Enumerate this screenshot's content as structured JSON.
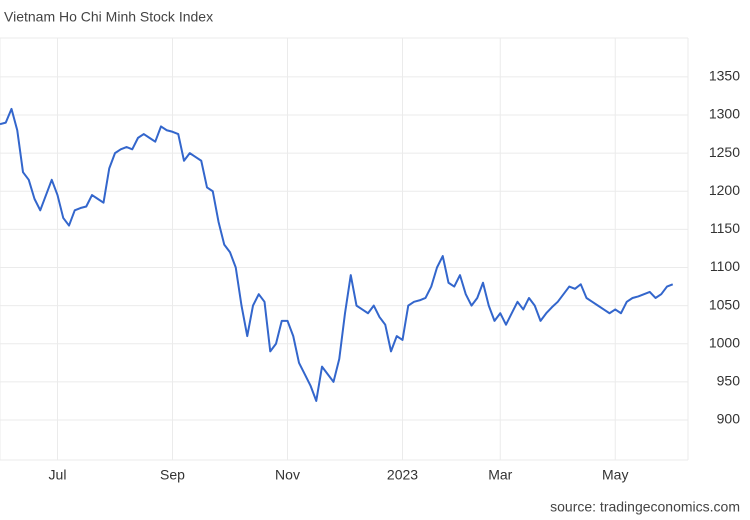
{
  "chart_data": {
    "type": "line",
    "title": "Vietnam Ho Chi Minh Stock Index",
    "source": "source: tradingeconomics.com",
    "categories": [
      null,
      null,
      null,
      null,
      null,
      null,
      null,
      null,
      null,
      null,
      "Jul",
      null,
      null,
      null,
      null,
      null,
      null,
      null,
      null,
      null,
      null,
      null,
      null,
      null,
      null,
      null,
      null,
      null,
      null,
      null,
      "Sep",
      null,
      null,
      null,
      null,
      null,
      null,
      null,
      null,
      null,
      null,
      null,
      null,
      null,
      null,
      null,
      null,
      null,
      null,
      null,
      "Nov",
      null,
      null,
      null,
      null,
      null,
      null,
      null,
      null,
      null,
      null,
      null,
      null,
      null,
      null,
      null,
      null,
      null,
      null,
      null,
      "2023",
      null,
      null,
      null,
      null,
      null,
      null,
      null,
      null,
      null,
      null,
      null,
      null,
      null,
      null,
      null,
      null,
      "Mar",
      null,
      null,
      null,
      null,
      null,
      null,
      null,
      null,
      null,
      null,
      null,
      null,
      null,
      null,
      null,
      null,
      null,
      null,
      null,
      "May",
      null,
      null,
      null,
      null,
      null,
      null,
      null,
      null,
      null,
      null
    ],
    "values": [
      1288,
      1290,
      1308,
      1280,
      1225,
      1215,
      1190,
      1175,
      1195,
      1215,
      1195,
      1165,
      1155,
      1175,
      1178,
      1180,
      1195,
      1190,
      1185,
      1230,
      1250,
      1255,
      1258,
      1255,
      1270,
      1275,
      1270,
      1265,
      1285,
      1280,
      1278,
      1275,
      1240,
      1250,
      1245,
      1240,
      1205,
      1200,
      1160,
      1130,
      1120,
      1100,
      1050,
      1010,
      1050,
      1065,
      1055,
      990,
      1000,
      1030,
      1030,
      1010,
      975,
      960,
      945,
      925,
      970,
      960,
      950,
      980,
      1040,
      1090,
      1050,
      1045,
      1040,
      1050,
      1035,
      1025,
      990,
      1010,
      1005,
      1050,
      1055,
      1057,
      1060,
      1075,
      1100,
      1115,
      1080,
      1075,
      1090,
      1065,
      1050,
      1060,
      1080,
      1050,
      1030,
      1040,
      1025,
      1040,
      1055,
      1045,
      1060,
      1050,
      1030,
      1040,
      1048,
      1055,
      1065,
      1075,
      1072,
      1078,
      1060,
      1055,
      1050,
      1045,
      1040,
      1045,
      1040,
      1055,
      1060,
      1062,
      1065,
      1068,
      1060,
      1065,
      1075,
      1078
    ],
    "color": "#3366cc",
    "ylim": [
      847.5,
      1401
    ],
    "yticks": [
      900,
      950,
      1000,
      1050,
      1100,
      1150,
      1200,
      1250,
      1300,
      1350
    ],
    "grid": true
  }
}
